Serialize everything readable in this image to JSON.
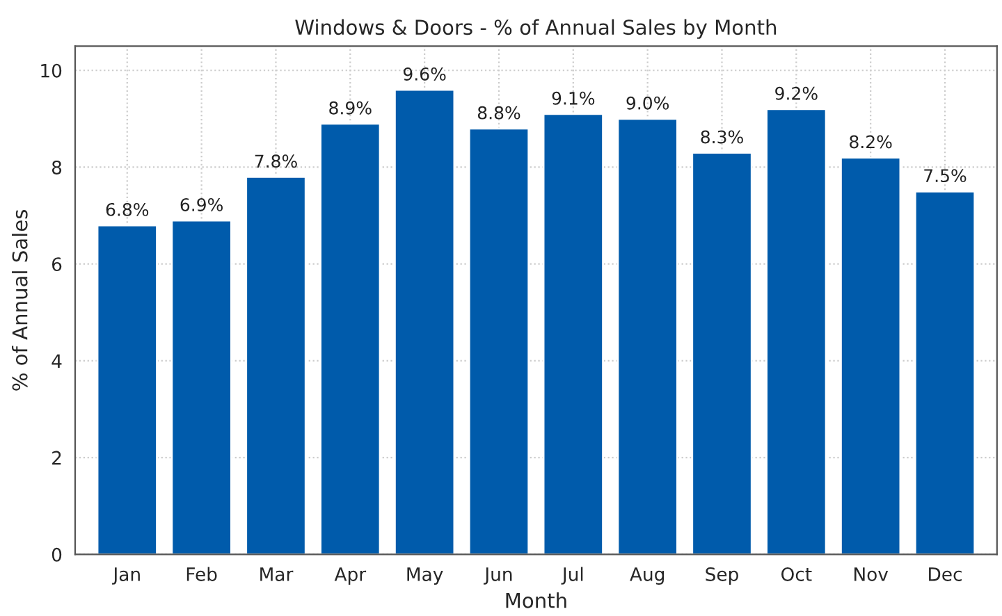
{
  "chart_data": {
    "type": "bar",
    "title": "Windows & Doors - % of Annual Sales by Month",
    "xlabel": "Month",
    "ylabel": "% of Annual Sales",
    "categories": [
      "Jan",
      "Feb",
      "Mar",
      "Apr",
      "May",
      "Jun",
      "Jul",
      "Aug",
      "Sep",
      "Oct",
      "Nov",
      "Dec"
    ],
    "values": [
      6.8,
      6.9,
      7.8,
      8.9,
      9.6,
      8.8,
      9.1,
      9.0,
      8.3,
      9.2,
      8.2,
      7.5
    ],
    "value_labels": [
      "6.8%",
      "6.9%",
      "7.8%",
      "8.9%",
      "9.6%",
      "8.8%",
      "9.1%",
      "9.0%",
      "8.3%",
      "9.2%",
      "8.2%",
      "7.5%"
    ],
    "color": "#005bab",
    "ylim": [
      0,
      10.5
    ],
    "yticks": [
      0,
      2,
      4,
      6,
      8,
      10
    ],
    "grid": true
  }
}
